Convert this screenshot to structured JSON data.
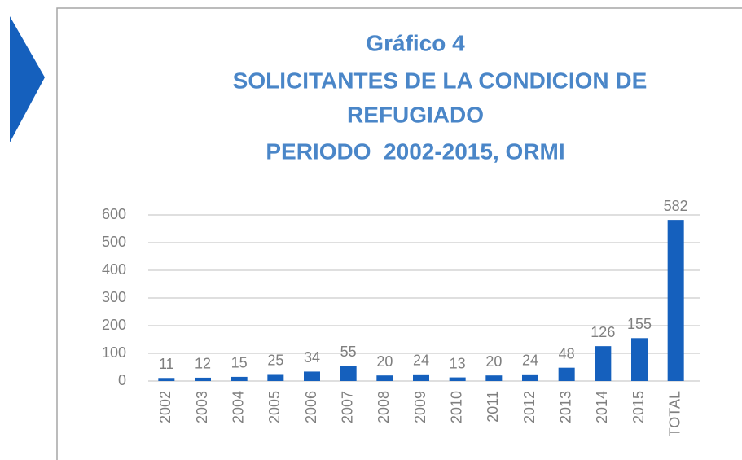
{
  "chart_data": {
    "type": "bar",
    "title": [
      "Gráfico 4",
      "SOLICITANTES DE LA CONDICION DE",
      "REFUGIADO",
      "PERIODO  2002-2015, ORMI"
    ],
    "categories": [
      "2002",
      "2003",
      "2004",
      "2005",
      "2006",
      "2007",
      "2008",
      "2009",
      "2010",
      "2011",
      "2012",
      "2013",
      "2014",
      "2015",
      "TOTAL"
    ],
    "values": [
      11,
      12,
      15,
      25,
      34,
      55,
      20,
      24,
      13,
      20,
      24,
      48,
      126,
      155,
      582
    ],
    "color": "#1560bd",
    "ylim": [
      0,
      600
    ],
    "yticks": [
      0,
      100,
      200,
      300,
      400,
      500,
      600
    ],
    "grid": true
  }
}
